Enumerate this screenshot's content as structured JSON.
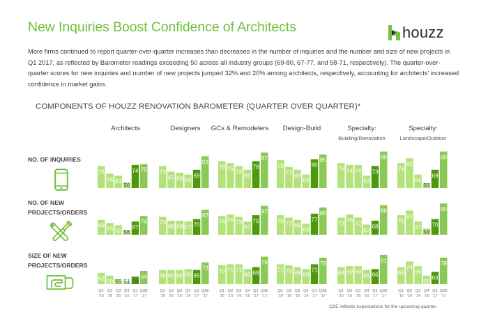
{
  "header": {
    "title": "New Inquiries Boost Confidence of Architects",
    "logo_text": "houzz",
    "intro": "More firms continued to report quarter-over-quarter increases than decreases in the number of inquiries and the number and size of new projects in Q1 2017, as reflected by Barometer readings exceeding 50 across all industry groups (69-80, 67-77, and 58-71, respectively). The quarter-over-quarter scores for new inquiries and number of new projects jumped 32% and 20% among architects, respectively, accounting for architects' increased confidence in market gains."
  },
  "colors": {
    "accent": "#6fbf3c",
    "bar_past": "#b3e27a",
    "bar_current": "#4c9a0a",
    "bar_expected": "#8bc956",
    "label_on_bar": "#ffffff",
    "label_short": "#555555"
  },
  "footnote": "Q2E reflects expectations for the upcoming quarter.",
  "chart_data": {
    "type": "bar",
    "title": "COMPONENTS OF HOUZZ RENOVATION BAROMETER (QUARTER OVER QUARTER)*",
    "xlabel": "",
    "ylabel": "",
    "baseline": 50,
    "grid": false,
    "categories": [
      "Q1 '16",
      "Q2 '16",
      "Q3 '16",
      "Q4 '16",
      "Q1 '17",
      "Q2E '17"
    ],
    "category_lines": [
      [
        "Q1",
        "'16"
      ],
      [
        "Q2",
        "'16"
      ],
      [
        "Q3",
        "'16"
      ],
      [
        "Q4",
        "'16"
      ],
      [
        "Q1",
        "'17"
      ],
      [
        "Q2E",
        "'17"
      ]
    ],
    "groups": [
      {
        "name": "Architects",
        "sub": ""
      },
      {
        "name": "Designers",
        "sub": ""
      },
      {
        "name": "GCs & Remodelers",
        "sub": ""
      },
      {
        "name": "Design-Build",
        "sub": ""
      },
      {
        "name": "Specialty:",
        "sub": "Building/Renovation"
      },
      {
        "name": "Specialty:",
        "sub": "Landscape/Outdoor"
      }
    ],
    "rows": [
      {
        "label": [
          "NO. OF INQUIRIES"
        ],
        "icon": "smartphone-icon",
        "series": [
          {
            "group": "Architects",
            "values": [
              73,
              65,
              63,
              56,
              74,
              75
            ]
          },
          {
            "group": "Designers",
            "values": [
              73,
              67,
              66,
              64,
              69,
              83
            ]
          },
          {
            "group": "GCs & Remodelers",
            "values": [
              78,
              76,
              73,
              69,
              78,
              87
            ]
          },
          {
            "group": "Design-Build",
            "values": [
              79,
              72,
              69,
              64,
              80,
              85
            ]
          },
          {
            "group": "Specialty: Building/Renovation",
            "values": [
              76,
              74,
              74,
              63,
              73,
              88
            ]
          },
          {
            "group": "Specialty: Landscape/Outdoor",
            "values": [
              76,
              81,
              64,
              55,
              69,
              88
            ]
          }
        ]
      },
      {
        "label": [
          "NO. OF NEW",
          "PROJECTS/ORDERS"
        ],
        "icon": "tools-icon",
        "series": [
          {
            "group": "Architects",
            "values": [
              69,
              65,
              62,
              56,
              67,
              74
            ]
          },
          {
            "group": "Designers",
            "values": [
              73,
              68,
              68,
              67,
              70,
              82
            ]
          },
          {
            "group": "GCs & Remodelers",
            "values": [
              74,
              76,
              73,
              67,
              75,
              87
            ]
          },
          {
            "group": "Design-Build",
            "values": [
              75,
              72,
              69,
              64,
              77,
              85
            ]
          },
          {
            "group": "Specialty: Building/Renovation",
            "values": [
              72,
              76,
              72,
              63,
              68,
              88
            ]
          },
          {
            "group": "Specialty: Landscape/Outdoor",
            "values": [
              75,
              81,
              67,
              58,
              70,
              90
            ]
          }
        ]
      },
      {
        "label": [
          "SIZE OF NEW",
          "PROJECTS/ORDERS"
        ],
        "icon": "money-hand-icon",
        "series": [
          {
            "group": "Architects",
            "values": [
              62,
              59,
              55,
              51,
              58,
              64
            ]
          },
          {
            "group": "Designers",
            "values": [
              65,
              65,
              65,
              66,
              65,
              73
            ]
          },
          {
            "group": "GCs & Remodelers",
            "values": [
              70,
              71,
              71,
              66,
              68,
              79
            ]
          },
          {
            "group": "Design-Build",
            "values": [
              71,
              70,
              68,
              66,
              71,
              78
            ]
          },
          {
            "group": "Specialty: Building/Renovation",
            "values": [
              68,
              69,
              69,
              65,
              66,
              81
            ]
          },
          {
            "group": "Specialty: Landscape/Outdoor",
            "values": [
              68,
              74,
              69,
              59,
              63,
              78
            ]
          }
        ]
      }
    ]
  }
}
